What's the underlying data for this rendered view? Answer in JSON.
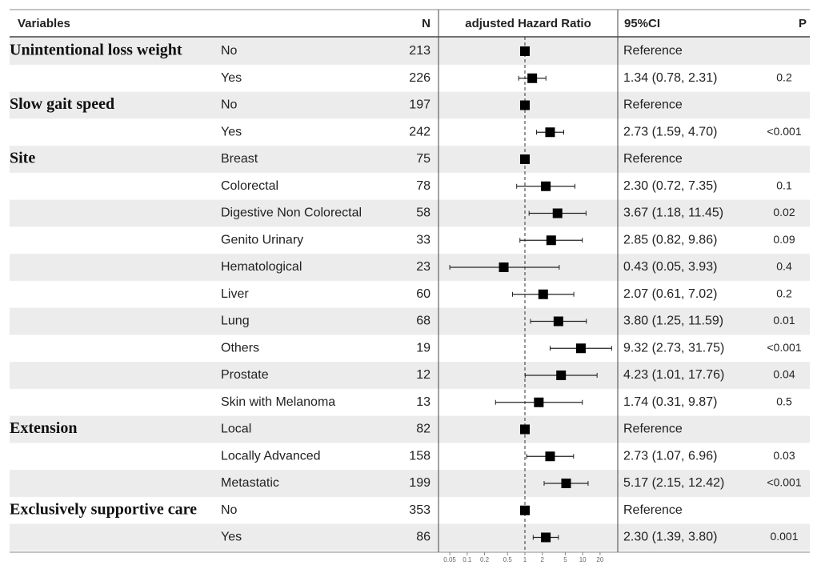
{
  "chart_data": {
    "type": "forest",
    "headers": {
      "variable": "Variables",
      "n": "N",
      "plot": "adjusted Hazard Ratio",
      "ci": "95%CI",
      "p": "P"
    },
    "xlim": [
      0.034,
      38
    ],
    "xticks": [
      0.05,
      0.1,
      0.2,
      0.5,
      1,
      2,
      5,
      10,
      20
    ],
    "log_x": true,
    "square_color": "#000000",
    "rows": [
      {
        "variable": "Unintentional loss weight",
        "level": "No",
        "n": 213,
        "hr": 1,
        "ci_label": "Reference"
      },
      {
        "level": "Yes",
        "n": 226,
        "hr": 1.34,
        "lo": 0.78,
        "hi": 2.31,
        "ci_label": "1.34 (0.78, 2.31)",
        "p": "0.2"
      },
      {
        "variable": "Slow gait speed",
        "level": "No",
        "n": 197,
        "hr": 1,
        "ci_label": "Reference"
      },
      {
        "level": "Yes",
        "n": 242,
        "hr": 2.73,
        "lo": 1.59,
        "hi": 4.7,
        "ci_label": "2.73 (1.59, 4.70)",
        "p": "<0.001"
      },
      {
        "variable": "Site",
        "level": "Breast",
        "n": 75,
        "hr": 1,
        "ci_label": "Reference"
      },
      {
        "level": "Colorectal",
        "n": 78,
        "hr": 2.3,
        "lo": 0.72,
        "hi": 7.35,
        "ci_label": "2.30 (0.72, 7.35)",
        "p": "0.1"
      },
      {
        "level": "Digestive Non Colorectal",
        "n": 58,
        "hr": 3.67,
        "lo": 1.18,
        "hi": 11.45,
        "ci_label": "3.67 (1.18, 11.45)",
        "p": "0.02"
      },
      {
        "level": "Genito Urinary",
        "n": 33,
        "hr": 2.85,
        "lo": 0.82,
        "hi": 9.86,
        "ci_label": "2.85 (0.82, 9.86)",
        "p": "0.09"
      },
      {
        "level": "Hematological",
        "n": 23,
        "hr": 0.43,
        "lo": 0.05,
        "hi": 3.93,
        "ci_label": "0.43 (0.05, 3.93)",
        "p": "0.4"
      },
      {
        "level": "Liver",
        "n": 60,
        "hr": 2.07,
        "lo": 0.61,
        "hi": 7.02,
        "ci_label": "2.07 (0.61, 7.02)",
        "p": "0.2"
      },
      {
        "level": "Lung",
        "n": 68,
        "hr": 3.8,
        "lo": 1.25,
        "hi": 11.59,
        "ci_label": "3.80 (1.25, 11.59)",
        "p": "0.01"
      },
      {
        "level": "Others",
        "n": 19,
        "hr": 9.32,
        "lo": 2.73,
        "hi": 31.75,
        "ci_label": "9.32 (2.73, 31.75)",
        "p": "<0.001"
      },
      {
        "level": "Prostate",
        "n": 12,
        "hr": 4.23,
        "lo": 1.01,
        "hi": 17.76,
        "ci_label": "4.23 (1.01, 17.76)",
        "p": "0.04"
      },
      {
        "level": "Skin with Melanoma",
        "n": 13,
        "hr": 1.74,
        "lo": 0.31,
        "hi": 9.87,
        "ci_label": "1.74 (0.31, 9.87)",
        "p": "0.5"
      },
      {
        "variable": "Extension",
        "level": "Local",
        "n": 82,
        "hr": 1,
        "ci_label": "Reference"
      },
      {
        "level": "Locally Advanced",
        "n": 158,
        "hr": 2.73,
        "lo": 1.07,
        "hi": 6.96,
        "ci_label": "2.73 (1.07, 6.96)",
        "p": "0.03"
      },
      {
        "level": "Metastatic",
        "n": 199,
        "hr": 5.17,
        "lo": 2.15,
        "hi": 12.42,
        "ci_label": "5.17 (2.15, 12.42)",
        "p": "<0.001"
      },
      {
        "variable": "Exclusively supportive care",
        "level": "No",
        "n": 353,
        "hr": 1,
        "ci_label": "Reference"
      },
      {
        "level": "Yes",
        "n": 86,
        "hr": 2.3,
        "lo": 1.39,
        "hi": 3.8,
        "ci_label": "2.30 (1.39, 3.80)",
        "p": "0.001"
      }
    ]
  }
}
